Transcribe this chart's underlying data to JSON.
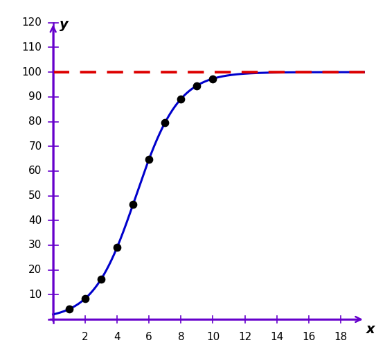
{
  "L": 100,
  "a": 49.0,
  "b": 0.75,
  "x_min": 0,
  "x_max": 19.5,
  "y_min": 0,
  "y_max": 125,
  "x_ticks": [
    2,
    4,
    6,
    8,
    10,
    12,
    14,
    16,
    18
  ],
  "y_ticks": [
    10,
    20,
    30,
    40,
    50,
    60,
    70,
    80,
    90,
    100,
    110,
    120
  ],
  "dot_x": [
    1,
    2,
    3,
    4,
    5,
    6,
    7,
    8,
    9,
    10
  ],
  "hline_y": 100,
  "curve_color": "#0000cc",
  "hline_color": "#dd0000",
  "dot_color": "#000000",
  "axis_color": "#6600cc",
  "xlabel": "x",
  "ylabel": "y",
  "curve_lw": 2.2,
  "hline_lw": 2.8,
  "dot_size": 55,
  "bg_color": "#ffffff",
  "tick_label_fontsize": 11,
  "label_fontsize": 14
}
